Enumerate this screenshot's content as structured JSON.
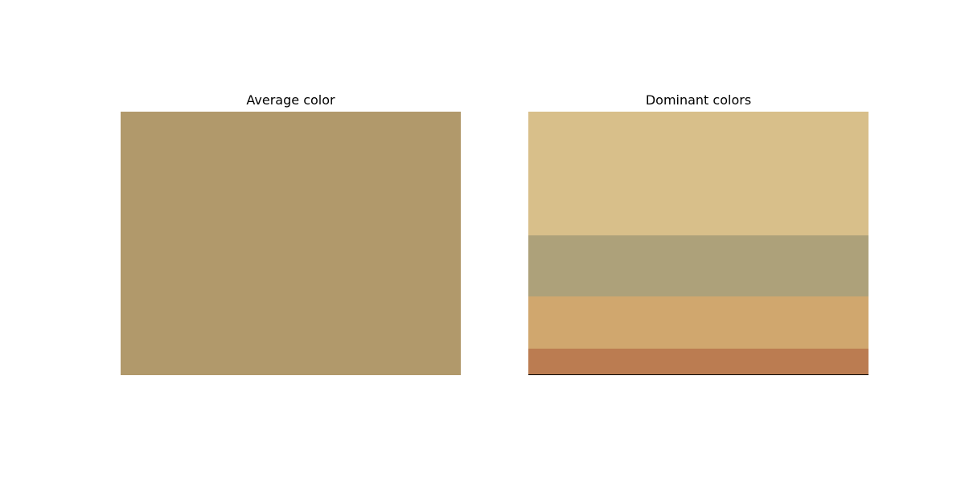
{
  "chart_data": [
    {
      "type": "bar",
      "title": "Average color",
      "colors": [
        "#b1996b"
      ]
    },
    {
      "type": "bar",
      "title": "Dominant colors",
      "orientation": "stacked-vertical",
      "colors": [
        "#d8bf8a",
        "#ada17a",
        "#d0a76e",
        "#bb7c51"
      ],
      "proportions": [
        0.47,
        0.23,
        0.2,
        0.1
      ]
    }
  ]
}
